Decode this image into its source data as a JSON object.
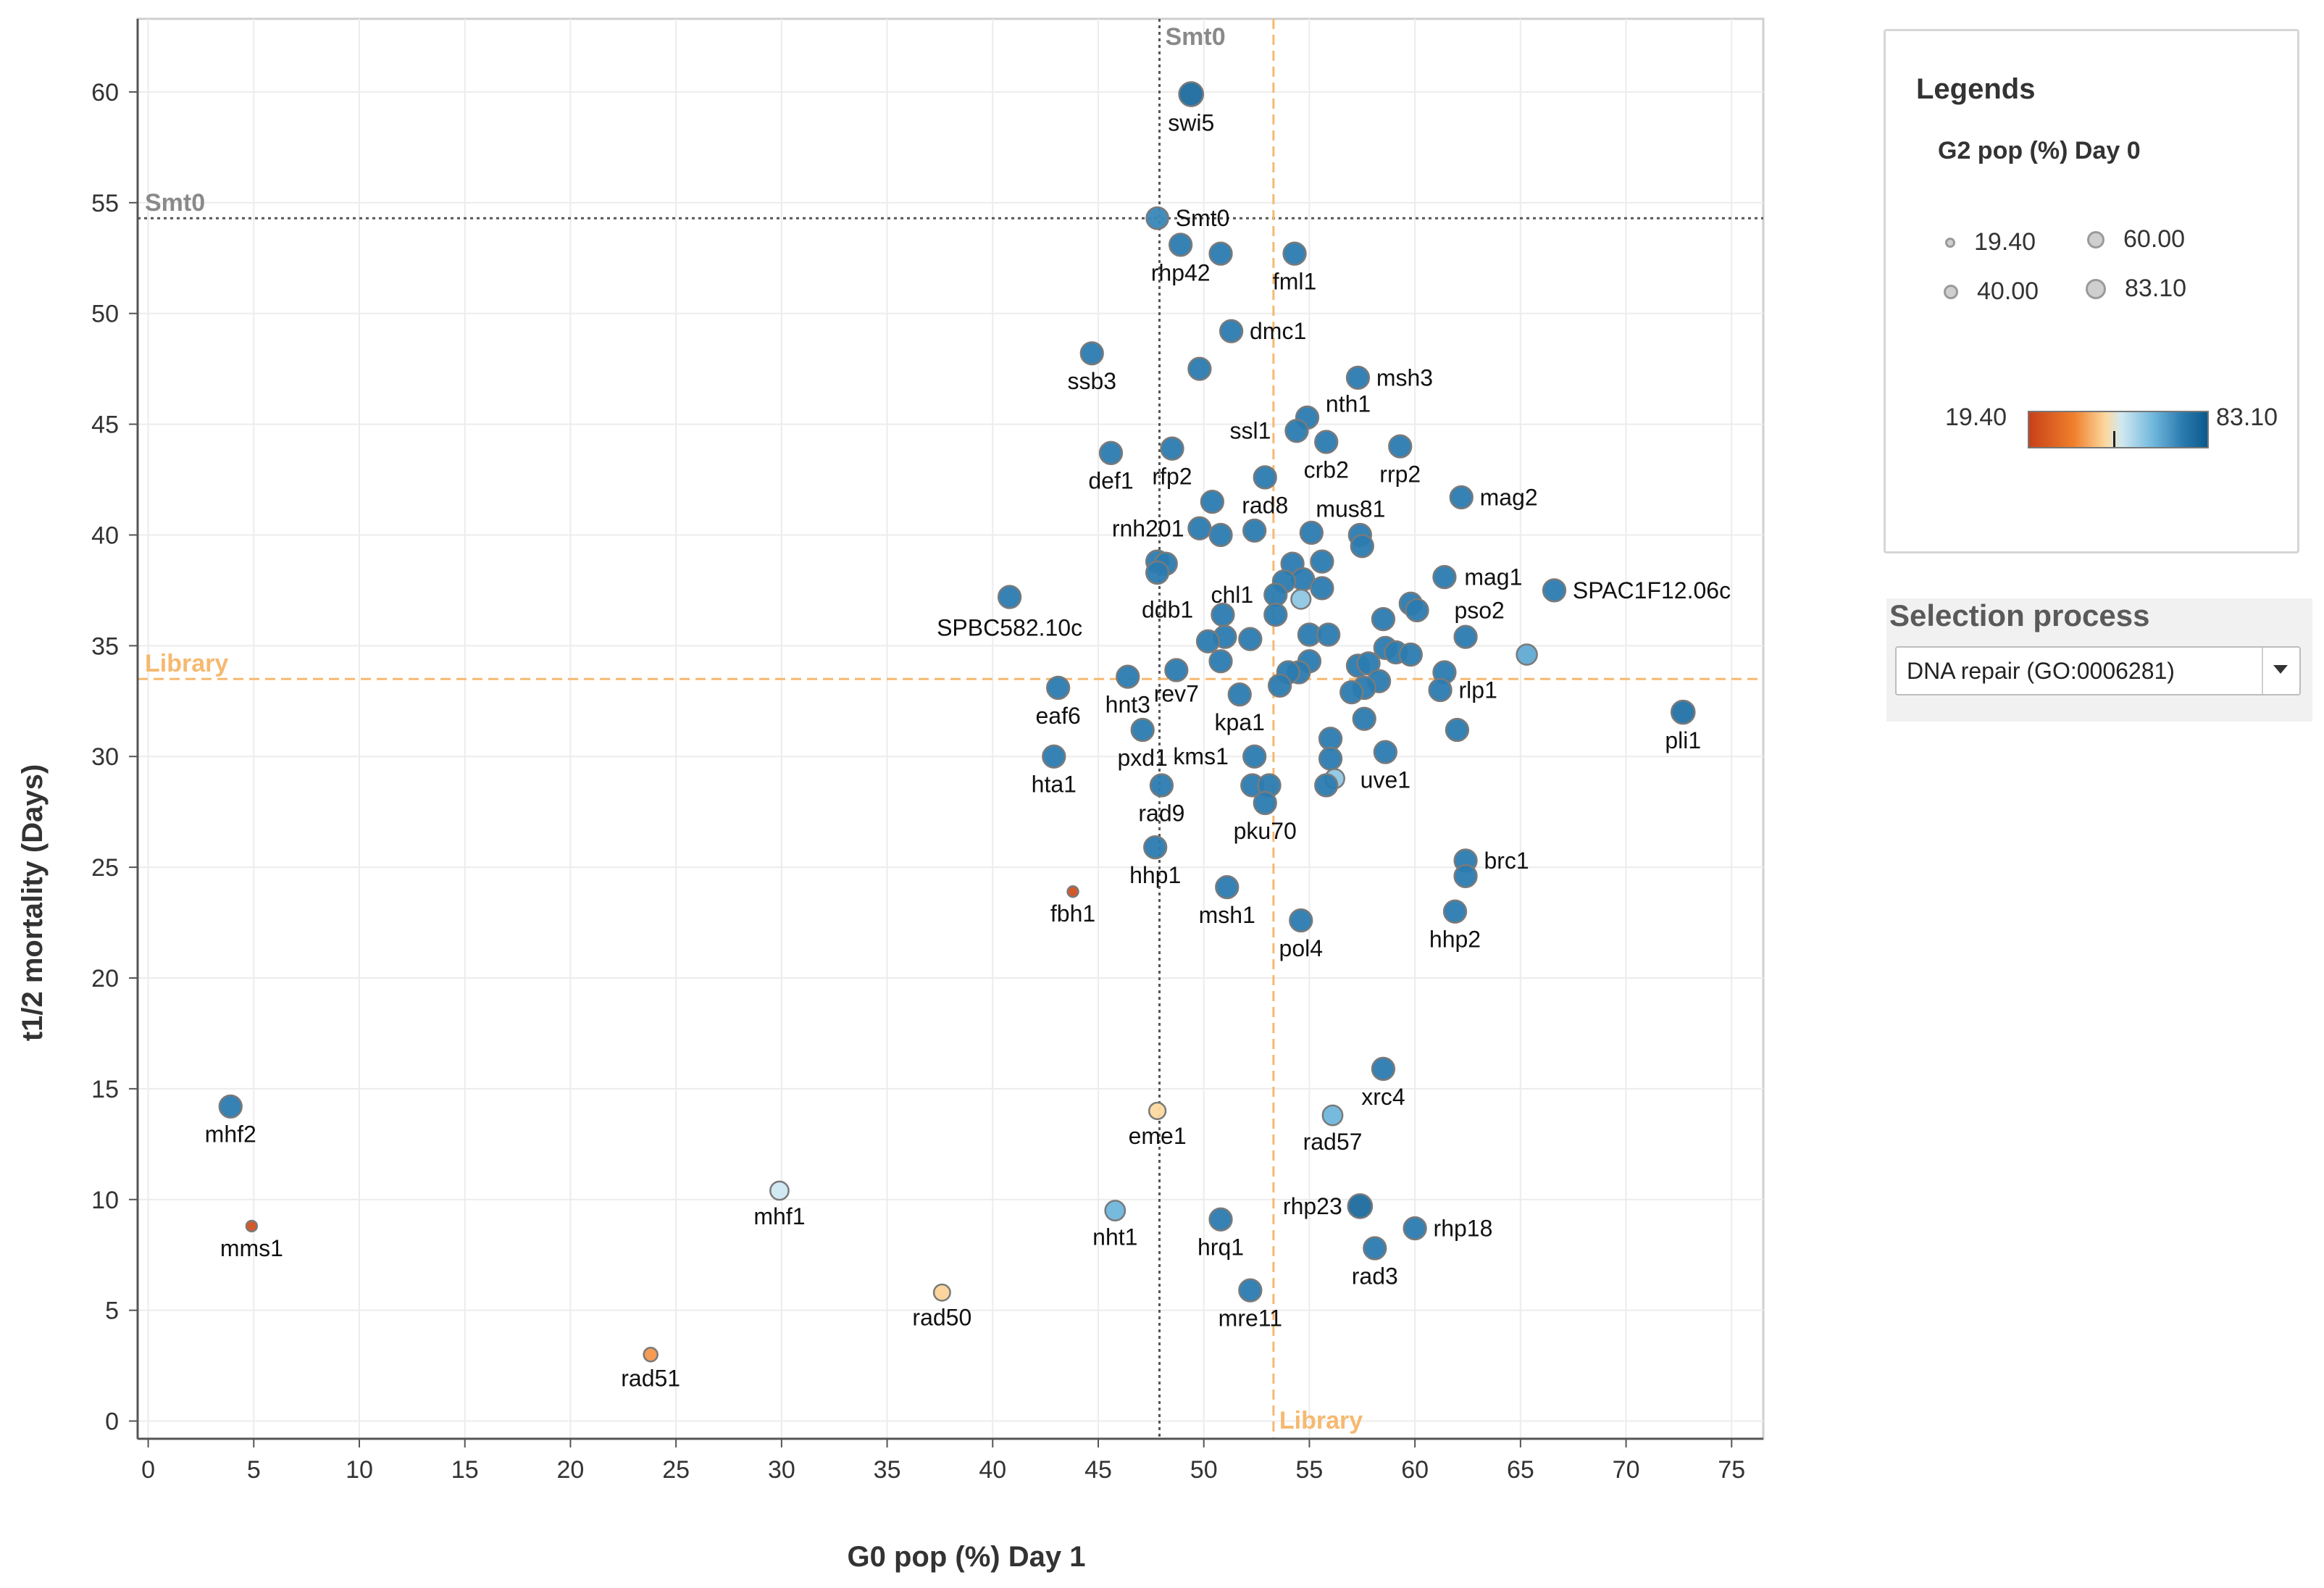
{
  "chart_data": {
    "type": "scatter",
    "xlabel": "G0 pop (%) Day 1",
    "ylabel": "t1/2 mortality (Days)",
    "xlim": [
      -0.5,
      76.5
    ],
    "ylim": [
      -0.8,
      63.3
    ],
    "xticks": [
      0,
      5,
      10,
      15,
      20,
      25,
      30,
      35,
      40,
      45,
      50,
      55,
      60,
      65,
      70,
      75
    ],
    "yticks": [
      0,
      5,
      10,
      15,
      20,
      25,
      30,
      35,
      40,
      45,
      50,
      55,
      60
    ],
    "grid": true,
    "color_variable": "G2 pop (%) Day 0",
    "color_range": [
      19.4,
      83.1
    ],
    "size_range": [
      19.4,
      83.1
    ],
    "reference_lines": [
      {
        "name": "Smt0",
        "axis": "x",
        "value": 47.9,
        "color": "#555555"
      },
      {
        "name": "Smt0",
        "axis": "y",
        "value": 54.3,
        "color": "#555555"
      },
      {
        "name": "Library",
        "axis": "x",
        "value": 53.3,
        "color": "#f5b971"
      },
      {
        "name": "Library",
        "axis": "y",
        "value": 33.5,
        "color": "#f5b971"
      }
    ],
    "points": [
      {
        "x": 49.4,
        "y": 59.9,
        "g2": 75,
        "label": "swi5"
      },
      {
        "x": 47.8,
        "y": 54.3,
        "g2": 66,
        "label": "Smt0"
      },
      {
        "x": 48.9,
        "y": 53.1,
        "g2": 68,
        "label": "rhp42"
      },
      {
        "x": 50.8,
        "y": 52.7,
        "g2": 68,
        "label": ""
      },
      {
        "x": 54.3,
        "y": 52.7,
        "g2": 68,
        "label": "fml1"
      },
      {
        "x": 51.3,
        "y": 49.2,
        "g2": 68,
        "label": "dmc1"
      },
      {
        "x": 44.7,
        "y": 48.2,
        "g2": 68,
        "label": "ssb3"
      },
      {
        "x": 49.8,
        "y": 47.5,
        "g2": 68,
        "label": ""
      },
      {
        "x": 57.3,
        "y": 47.1,
        "g2": 68,
        "label": "msh3"
      },
      {
        "x": 54.9,
        "y": 45.3,
        "g2": 68,
        "label": "nth1"
      },
      {
        "x": 54.4,
        "y": 44.7,
        "g2": 68,
        "label": "ssl1"
      },
      {
        "x": 55.8,
        "y": 44.2,
        "g2": 68,
        "label": "crb2"
      },
      {
        "x": 59.3,
        "y": 44.0,
        "g2": 68,
        "label": "rrp2"
      },
      {
        "x": 45.6,
        "y": 43.7,
        "g2": 68,
        "label": "def1"
      },
      {
        "x": 48.5,
        "y": 43.9,
        "g2": 68,
        "label": "rfp2"
      },
      {
        "x": 52.9,
        "y": 42.6,
        "g2": 68,
        "label": "rad8"
      },
      {
        "x": 62.2,
        "y": 41.7,
        "g2": 68,
        "label": "mag2"
      },
      {
        "x": 50.4,
        "y": 41.5,
        "g2": 68,
        "label": ""
      },
      {
        "x": 49.8,
        "y": 40.3,
        "g2": 68,
        "label": "rnh201"
      },
      {
        "x": 50.8,
        "y": 40.0,
        "g2": 68,
        "label": ""
      },
      {
        "x": 52.4,
        "y": 40.2,
        "g2": 68,
        "label": ""
      },
      {
        "x": 55.1,
        "y": 40.1,
        "g2": 68,
        "label": "mus81"
      },
      {
        "x": 57.4,
        "y": 40.0,
        "g2": 68,
        "label": ""
      },
      {
        "x": 57.5,
        "y": 39.5,
        "g2": 68,
        "label": ""
      },
      {
        "x": 47.8,
        "y": 38.8,
        "g2": 68,
        "label": ""
      },
      {
        "x": 48.2,
        "y": 38.7,
        "g2": 68,
        "label": ""
      },
      {
        "x": 47.8,
        "y": 38.3,
        "g2": 68,
        "label": "ddb1"
      },
      {
        "x": 54.2,
        "y": 38.7,
        "g2": 68,
        "label": ""
      },
      {
        "x": 55.6,
        "y": 38.8,
        "g2": 68,
        "label": ""
      },
      {
        "x": 54.7,
        "y": 38.0,
        "g2": 68,
        "label": ""
      },
      {
        "x": 53.8,
        "y": 37.9,
        "g2": 68,
        "label": ""
      },
      {
        "x": 53.4,
        "y": 37.3,
        "g2": 68,
        "label": "chl1"
      },
      {
        "x": 55.6,
        "y": 37.6,
        "g2": 68,
        "label": ""
      },
      {
        "x": 61.4,
        "y": 38.1,
        "g2": 68,
        "label": "mag1"
      },
      {
        "x": 66.6,
        "y": 37.5,
        "g2": 68,
        "label": "SPAC1F12.06c"
      },
      {
        "x": 40.8,
        "y": 37.2,
        "g2": 68,
        "label": "SPBC582.10c"
      },
      {
        "x": 54.6,
        "y": 37.1,
        "g2": 56,
        "label": ""
      },
      {
        "x": 59.8,
        "y": 36.9,
        "g2": 68,
        "label": ""
      },
      {
        "x": 60.1,
        "y": 36.6,
        "g2": 68,
        "label": "pso2"
      },
      {
        "x": 58.5,
        "y": 36.2,
        "g2": 68,
        "label": ""
      },
      {
        "x": 50.9,
        "y": 36.4,
        "g2": 68,
        "label": ""
      },
      {
        "x": 53.4,
        "y": 36.4,
        "g2": 68,
        "label": ""
      },
      {
        "x": 55.0,
        "y": 35.5,
        "g2": 68,
        "label": ""
      },
      {
        "x": 55.9,
        "y": 35.5,
        "g2": 68,
        "label": ""
      },
      {
        "x": 51.0,
        "y": 35.4,
        "g2": 68,
        "label": ""
      },
      {
        "x": 52.2,
        "y": 35.3,
        "g2": 68,
        "label": ""
      },
      {
        "x": 50.2,
        "y": 35.2,
        "g2": 68,
        "label": ""
      },
      {
        "x": 58.6,
        "y": 34.9,
        "g2": 68,
        "label": ""
      },
      {
        "x": 59.1,
        "y": 34.7,
        "g2": 68,
        "label": ""
      },
      {
        "x": 59.8,
        "y": 34.6,
        "g2": 68,
        "label": ""
      },
      {
        "x": 62.4,
        "y": 35.4,
        "g2": 68,
        "label": ""
      },
      {
        "x": 65.3,
        "y": 34.6,
        "g2": 60,
        "label": ""
      },
      {
        "x": 50.8,
        "y": 34.3,
        "g2": 68,
        "label": ""
      },
      {
        "x": 55.0,
        "y": 34.3,
        "g2": 68,
        "label": ""
      },
      {
        "x": 54.5,
        "y": 33.8,
        "g2": 68,
        "label": ""
      },
      {
        "x": 57.3,
        "y": 34.1,
        "g2": 68,
        "label": ""
      },
      {
        "x": 57.8,
        "y": 34.2,
        "g2": 68,
        "label": ""
      },
      {
        "x": 58.3,
        "y": 33.4,
        "g2": 68,
        "label": ""
      },
      {
        "x": 57.6,
        "y": 33.1,
        "g2": 68,
        "label": ""
      },
      {
        "x": 57.0,
        "y": 32.9,
        "g2": 68,
        "label": ""
      },
      {
        "x": 54.0,
        "y": 33.8,
        "g2": 68,
        "label": ""
      },
      {
        "x": 53.6,
        "y": 33.2,
        "g2": 68,
        "label": ""
      },
      {
        "x": 61.4,
        "y": 33.8,
        "g2": 68,
        "label": ""
      },
      {
        "x": 61.2,
        "y": 33.0,
        "g2": 68,
        "label": "rlp1"
      },
      {
        "x": 46.4,
        "y": 33.6,
        "g2": 68,
        "label": "hnt3"
      },
      {
        "x": 48.7,
        "y": 33.9,
        "g2": 68,
        "label": "rev7"
      },
      {
        "x": 43.1,
        "y": 33.1,
        "g2": 68,
        "label": "eaf6"
      },
      {
        "x": 51.7,
        "y": 32.8,
        "g2": 68,
        "label": "kpa1"
      },
      {
        "x": 72.7,
        "y": 32.0,
        "g2": 72,
        "label": "pli1"
      },
      {
        "x": 57.6,
        "y": 31.7,
        "g2": 68,
        "label": ""
      },
      {
        "x": 62.0,
        "y": 31.2,
        "g2": 68,
        "label": ""
      },
      {
        "x": 47.1,
        "y": 31.2,
        "g2": 68,
        "label": "pxd1"
      },
      {
        "x": 56.0,
        "y": 30.8,
        "g2": 68,
        "label": ""
      },
      {
        "x": 58.6,
        "y": 30.2,
        "g2": 68,
        "label": "uve1"
      },
      {
        "x": 52.4,
        "y": 30.0,
        "g2": 68,
        "label": "kms1"
      },
      {
        "x": 56.0,
        "y": 29.9,
        "g2": 68,
        "label": ""
      },
      {
        "x": 42.9,
        "y": 30.0,
        "g2": 68,
        "label": "hta1"
      },
      {
        "x": 56.2,
        "y": 29.0,
        "g2": 56,
        "label": ""
      },
      {
        "x": 55.8,
        "y": 28.7,
        "g2": 68,
        "label": ""
      },
      {
        "x": 52.3,
        "y": 28.7,
        "g2": 68,
        "label": ""
      },
      {
        "x": 53.1,
        "y": 28.7,
        "g2": 68,
        "label": ""
      },
      {
        "x": 52.9,
        "y": 27.9,
        "g2": 68,
        "label": "pku70"
      },
      {
        "x": 48.0,
        "y": 28.7,
        "g2": 68,
        "label": "rad9"
      },
      {
        "x": 47.7,
        "y": 25.9,
        "g2": 68,
        "label": "hhp1"
      },
      {
        "x": 62.4,
        "y": 25.3,
        "g2": 68,
        "label": "brc1"
      },
      {
        "x": 62.4,
        "y": 24.6,
        "g2": 68,
        "label": ""
      },
      {
        "x": 43.8,
        "y": 23.9,
        "g2": 22,
        "label": "fbh1"
      },
      {
        "x": 51.1,
        "y": 24.1,
        "g2": 68,
        "label": "msh1"
      },
      {
        "x": 61.9,
        "y": 23.0,
        "g2": 68,
        "label": "hhp2"
      },
      {
        "x": 54.6,
        "y": 22.6,
        "g2": 68,
        "label": "pol4"
      },
      {
        "x": 58.5,
        "y": 15.9,
        "g2": 68,
        "label": "xrc4"
      },
      {
        "x": 3.9,
        "y": 14.2,
        "g2": 68,
        "label": "mhf2"
      },
      {
        "x": 47.8,
        "y": 14.0,
        "g2": 45,
        "label": "eme1"
      },
      {
        "x": 56.1,
        "y": 13.8,
        "g2": 58,
        "label": "rad57"
      },
      {
        "x": 29.9,
        "y": 10.4,
        "g2": 52,
        "label": "mhf1"
      },
      {
        "x": 4.9,
        "y": 8.8,
        "g2": 22,
        "label": "mms1"
      },
      {
        "x": 57.4,
        "y": 9.7,
        "g2": 75,
        "label": "rhp23"
      },
      {
        "x": 45.8,
        "y": 9.5,
        "g2": 58,
        "label": "nht1"
      },
      {
        "x": 50.8,
        "y": 9.1,
        "g2": 68,
        "label": "hrq1"
      },
      {
        "x": 60.0,
        "y": 8.7,
        "g2": 68,
        "label": "rhp18"
      },
      {
        "x": 58.1,
        "y": 7.8,
        "g2": 68,
        "label": "rad3"
      },
      {
        "x": 52.2,
        "y": 5.9,
        "g2": 68,
        "label": "mre11"
      },
      {
        "x": 37.6,
        "y": 5.8,
        "g2": 44,
        "label": "rad50"
      },
      {
        "x": 23.8,
        "y": 3.0,
        "g2": 34,
        "label": "rad51"
      }
    ]
  },
  "legend": {
    "title": "Legends",
    "subtitle": "G2 pop (%) Day 0",
    "sizes": [
      "19.40",
      "60.00",
      "40.00",
      "83.10"
    ],
    "gradient_min": "19.40",
    "gradient_max": "83.10"
  },
  "selection": {
    "title": "Selection process",
    "value": "DNA repair (GO:0006281)"
  }
}
